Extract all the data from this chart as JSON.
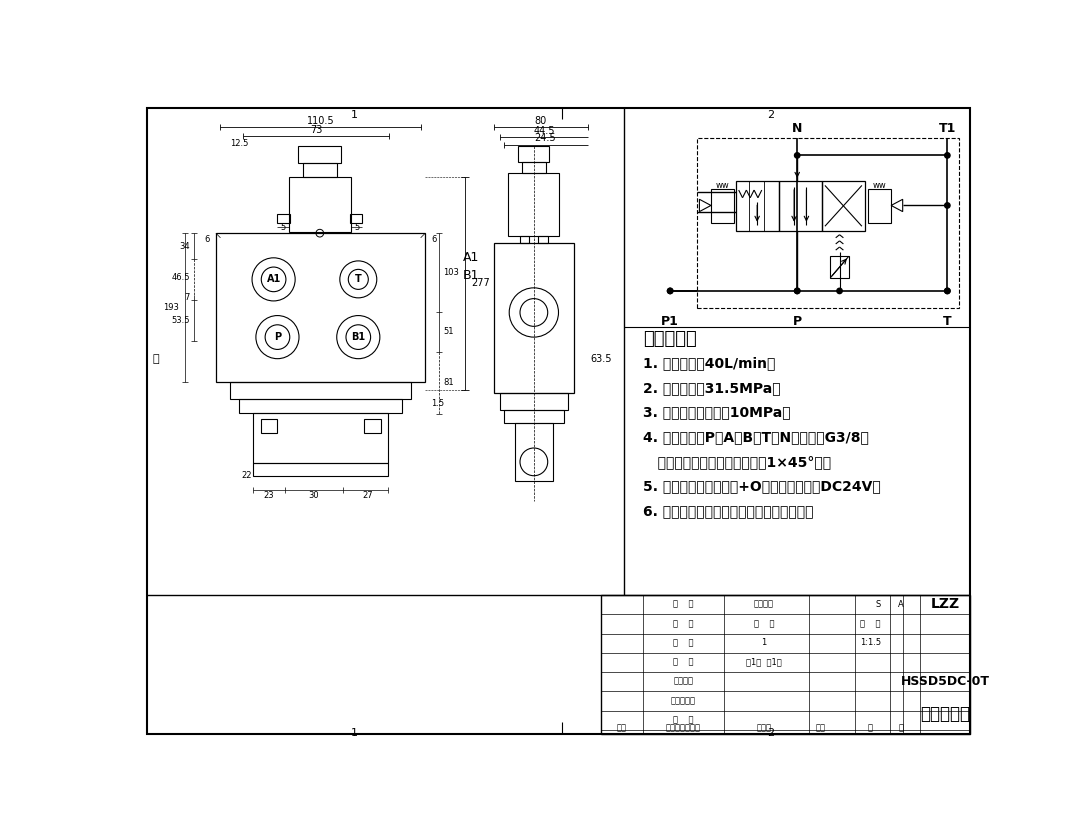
{
  "bg_color": "#ffffff",
  "line_color": "#000000",
  "tech_req_title": "技术要求：",
  "tech_req_items": [
    "1. 额定流量：40L/min；",
    "2. 额定压力：31.5MPa；",
    "3. 安全阀调定压力：10MPa；",
    "4. 油口尺寸：P、A、B、T、N油口均为G3/8；",
    "   油口均为平面密封，油孔口倒1×45°角；",
    "5. 控制方式：电磁控制+O型阀杆；电压：DC24V；",
    "6. 阀体表面磷化处理，安全阀及螺堵镀锌。"
  ],
  "title_block": {
    "company": "LZZ",
    "drawing_no": "HSSD5DC-0T",
    "part_name": "一联多路阀",
    "scale": "1:1.5",
    "sheet": "共1集  第1集"
  }
}
